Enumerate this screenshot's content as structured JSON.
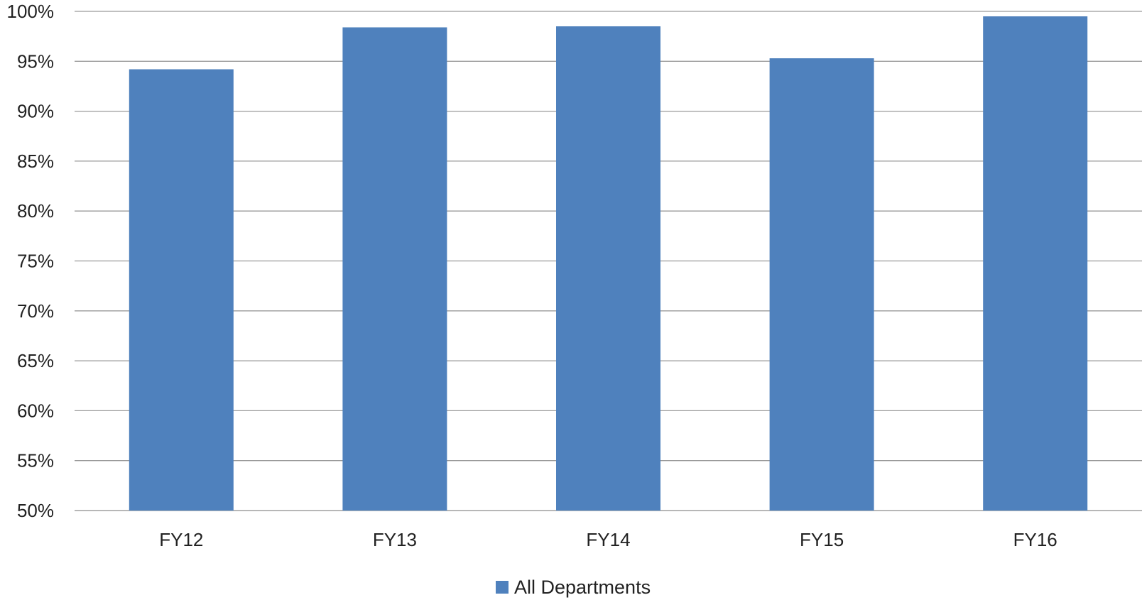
{
  "chart_data": {
    "type": "bar",
    "categories": [
      "FY12",
      "FY13",
      "FY14",
      "FY15",
      "FY16"
    ],
    "series": [
      {
        "name": "All Departments",
        "values": [
          94.2,
          98.4,
          98.5,
          95.3,
          99.5
        ],
        "color": "#4f81bd"
      }
    ],
    "ylim": [
      50,
      100
    ],
    "yticks": [
      50,
      55,
      60,
      65,
      70,
      75,
      80,
      85,
      90,
      95,
      100
    ],
    "ytick_labels": [
      "50%",
      "55%",
      "60%",
      "65%",
      "70%",
      "75%",
      "80%",
      "85%",
      "90%",
      "95%",
      "100%"
    ],
    "grid": true,
    "legend_position": "bottom",
    "title": "",
    "xlabel": "",
    "ylabel": ""
  }
}
